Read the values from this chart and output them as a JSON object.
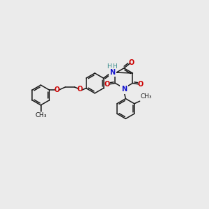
{
  "bg_color": "#ebebeb",
  "bond_color": "#1a1a1a",
  "o_color": "#cc0000",
  "n_color": "#1414cc",
  "h_color": "#338888",
  "font_size": 7.0,
  "bond_width": 1.1,
  "r": 0.48,
  "figsize": [
    3.0,
    3.0
  ],
  "dpi": 100,
  "xlim": [
    0,
    10
  ],
  "ylim": [
    0,
    10
  ]
}
